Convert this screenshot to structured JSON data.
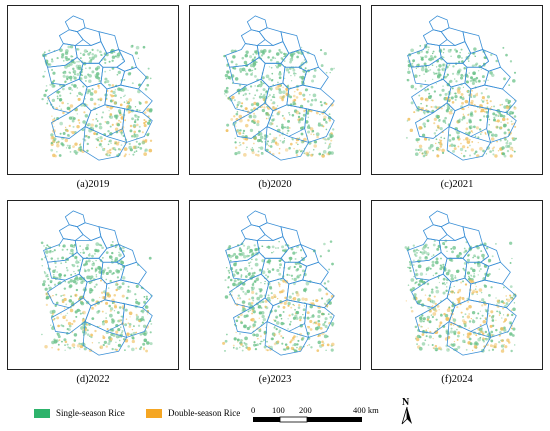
{
  "panels": [
    {
      "label": "(a)2019"
    },
    {
      "label": "(b)2020"
    },
    {
      "label": "(c)2021"
    },
    {
      "label": "(d)2022"
    },
    {
      "label": "(e)2023"
    },
    {
      "label": "(f)2024"
    }
  ],
  "legend": {
    "single": {
      "label": "Single-season Rice",
      "color": "#2db36b"
    },
    "double": {
      "label": "Double-season Rice",
      "color": "#f5a623"
    }
  },
  "scale": {
    "ticks": [
      "0",
      "100",
      "200",
      "400 km"
    ]
  },
  "north": {
    "label": "N"
  },
  "colors": {
    "boundary": "#3a8fd6",
    "single": "#6cc28a",
    "double": "#f0c060"
  }
}
